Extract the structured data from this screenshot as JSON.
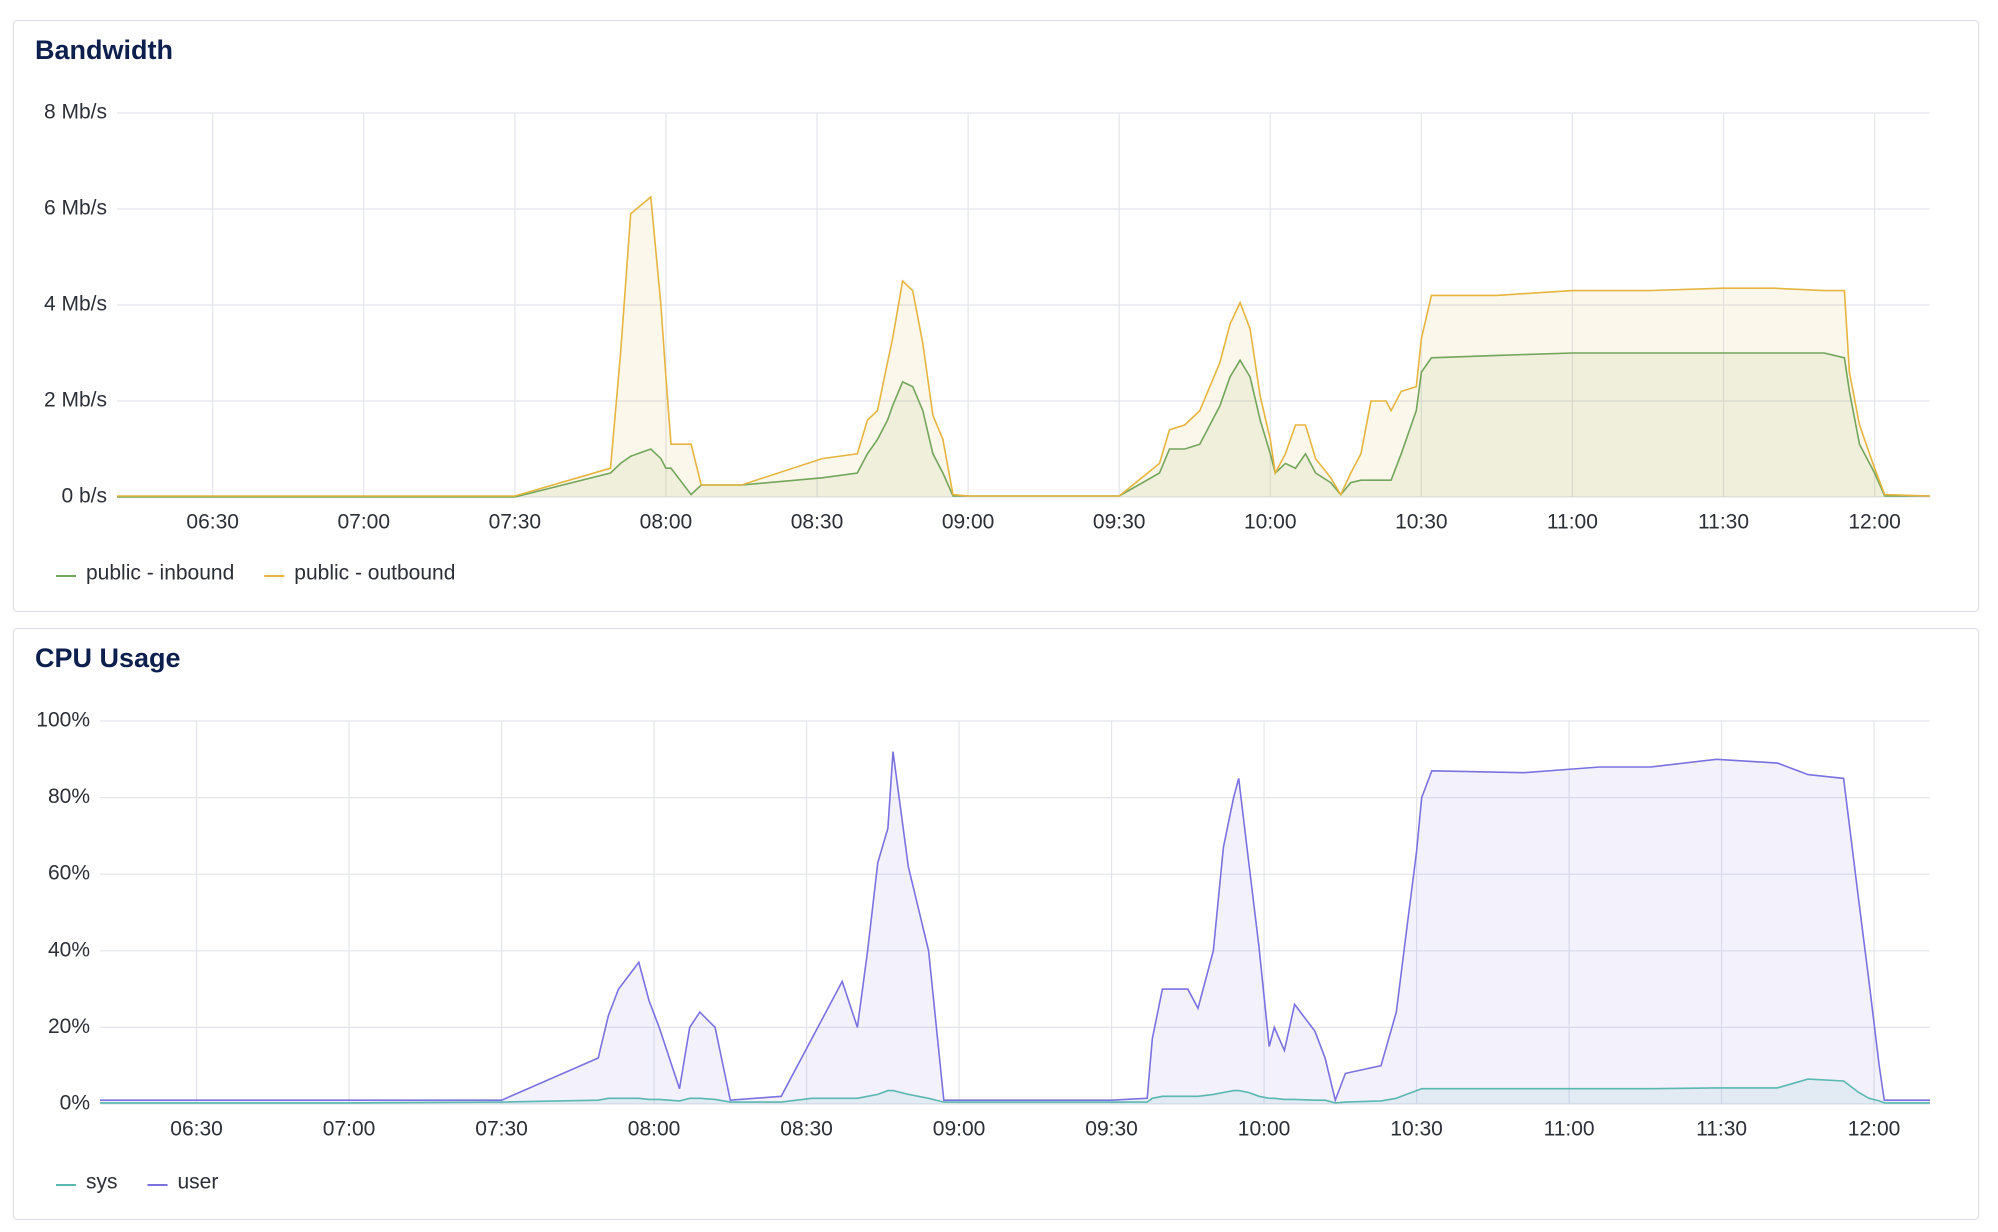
{
  "chart_data": [
    {
      "type": "line",
      "title": "Bandwidth",
      "fill": true,
      "grid": true,
      "legend": "bottom",
      "x": [
        "06:11",
        "06:30",
        "07:00",
        "07:30",
        "07:49",
        "07:51",
        "07:53",
        "07:57",
        "07:59",
        "08:00",
        "08:01",
        "08:05",
        "08:07",
        "08:15",
        "08:31",
        "08:38",
        "08:40",
        "08:42",
        "08:44",
        "08:45",
        "08:47",
        "08:49",
        "08:51",
        "08:53",
        "08:55",
        "08:57",
        "09:00",
        "09:30",
        "09:38",
        "09:40",
        "09:43",
        "09:46",
        "09:50",
        "09:52",
        "09:54",
        "09:56",
        "09:58",
        "10:00",
        "10:01",
        "10:03",
        "10:05",
        "10:07",
        "10:09",
        "10:12",
        "10:14",
        "10:16",
        "10:18",
        "10:20",
        "10:23",
        "10:24",
        "10:26",
        "10:29",
        "10:30",
        "10:32",
        "10:45",
        "11:00",
        "11:15",
        "11:30",
        "11:40",
        "11:50",
        "11:54",
        "11:55",
        "11:57",
        "12:00",
        "12:02",
        "12:11"
      ],
      "series": [
        {
          "name": "public - inbound",
          "color": "#73a55b",
          "values": [
            0,
            0,
            0,
            0,
            0.5,
            0.7,
            0.85,
            1.0,
            0.8,
            0.6,
            0.6,
            0.05,
            0.25,
            0.25,
            0.4,
            0.5,
            0.9,
            1.2,
            1.6,
            1.9,
            2.4,
            2.3,
            1.8,
            0.9,
            0.5,
            0.02,
            0.02,
            0.02,
            0.5,
            1.0,
            1.0,
            1.1,
            1.9,
            2.5,
            2.85,
            2.5,
            1.6,
            0.9,
            0.5,
            0.7,
            0.6,
            0.9,
            0.5,
            0.3,
            0.05,
            0.3,
            0.35,
            0.35,
            0.35,
            0.35,
            0.9,
            1.8,
            2.6,
            2.9,
            2.95,
            3.0,
            3.0,
            3.0,
            3.0,
            3.0,
            2.9,
            2.2,
            1.1,
            0.5,
            0.02,
            0.02
          ]
        },
        {
          "name": "public - outbound",
          "color": "#e5b53f",
          "values": [
            0.02,
            0.02,
            0.02,
            0.02,
            0.6,
            3.0,
            5.9,
            6.25,
            4.0,
            2.5,
            1.1,
            1.1,
            0.25,
            0.25,
            0.8,
            0.9,
            1.6,
            1.8,
            2.8,
            3.3,
            4.5,
            4.3,
            3.2,
            1.7,
            1.2,
            0.05,
            0.02,
            0.02,
            0.7,
            1.4,
            1.5,
            1.8,
            2.8,
            3.6,
            4.05,
            3.5,
            2.1,
            1.2,
            0.5,
            0.9,
            1.5,
            1.5,
            0.8,
            0.4,
            0.05,
            0.5,
            0.9,
            2.0,
            2.0,
            1.8,
            2.2,
            2.3,
            3.3,
            4.2,
            4.2,
            4.3,
            4.3,
            4.35,
            4.35,
            4.3,
            4.3,
            2.6,
            1.5,
            0.6,
            0.05,
            0.02
          ]
        }
      ],
      "xlim": [
        "06:11",
        "12:11"
      ],
      "xticks": [
        "06:30",
        "07:00",
        "07:30",
        "08:00",
        "08:30",
        "09:00",
        "09:30",
        "10:00",
        "10:30",
        "11:00",
        "11:30",
        "12:00"
      ],
      "ylim": [
        0,
        8
      ],
      "yticks": [
        {
          "value": 0,
          "label": "0 b/s"
        },
        {
          "value": 2,
          "label": "2 Mb/s"
        },
        {
          "value": 4,
          "label": "4 Mb/s"
        },
        {
          "value": 6,
          "label": "6 Mb/s"
        },
        {
          "value": 8,
          "label": "8 Mb/s"
        }
      ]
    },
    {
      "type": "line",
      "title": "CPU Usage",
      "fill": true,
      "grid": true,
      "legend": "bottom",
      "x": [
        "06:11",
        "06:30",
        "07:00",
        "07:30",
        "07:49",
        "07:51",
        "07:53",
        "07:57",
        "07:59",
        "08:01",
        "08:05",
        "08:07",
        "08:09",
        "08:12",
        "08:15",
        "08:25",
        "08:31",
        "08:37",
        "08:40",
        "08:42",
        "08:44",
        "08:46",
        "08:47",
        "08:50",
        "08:54",
        "08:57",
        "09:30",
        "09:37",
        "09:38",
        "09:40",
        "09:45",
        "09:47",
        "09:50",
        "09:52",
        "09:54",
        "09:55",
        "09:57",
        "09:59",
        "10:01",
        "10:02",
        "10:04",
        "10:06",
        "10:10",
        "10:12",
        "10:14",
        "10:16",
        "10:23",
        "10:26",
        "10:28",
        "10:30",
        "10:31",
        "10:33",
        "10:51",
        "11:06",
        "11:16",
        "11:29",
        "11:41",
        "11:47",
        "11:54",
        "11:57",
        "11:59",
        "12:01",
        "12:02",
        "12:11"
      ],
      "series": [
        {
          "name": "sys",
          "color": "#5ab8b0",
          "values": [
            0.3,
            0.3,
            0.3,
            0.5,
            1,
            1.5,
            1.5,
            1.5,
            1.2,
            1.2,
            0.8,
            1.5,
            1.5,
            1.2,
            0.5,
            0.5,
            1.5,
            1.5,
            1.5,
            2,
            2.5,
            3.5,
            3.5,
            2.5,
            1.5,
            0.5,
            0.5,
            0.5,
            1.5,
            2,
            2,
            2,
            2.5,
            3,
            3.5,
            3.5,
            3,
            2,
            1.5,
            1.5,
            1.2,
            1.2,
            1,
            1,
            0.3,
            0.5,
            0.8,
            1.5,
            2.5,
            3.5,
            4,
            4,
            4,
            4,
            4,
            4.2,
            4.2,
            6.5,
            6,
            3,
            1.5,
            0.8,
            0.3,
            0.3
          ]
        },
        {
          "name": "user",
          "color": "#7b72e0",
          "values": [
            1,
            1,
            1,
            1,
            12,
            23,
            30,
            37,
            27,
            20,
            4,
            20,
            24,
            20,
            1,
            2,
            17,
            32,
            20,
            40,
            63,
            72,
            92,
            62,
            40,
            1,
            1,
            1.5,
            17,
            30,
            30,
            25,
            40,
            67,
            80,
            85,
            63,
            41,
            15,
            20,
            14,
            26,
            19,
            12,
            1,
            8,
            10,
            24,
            45,
            66,
            80,
            87,
            86.5,
            88,
            88,
            90,
            89,
            86,
            85,
            53,
            32,
            10,
            1,
            1
          ]
        }
      ],
      "xlim": [
        "06:11",
        "12:11"
      ],
      "xticks": [
        "06:30",
        "07:00",
        "07:30",
        "08:00",
        "08:30",
        "09:00",
        "09:30",
        "10:00",
        "10:30",
        "11:00",
        "11:30",
        "12:00"
      ],
      "ylim": [
        0,
        100
      ],
      "yticks": [
        {
          "value": 0,
          "label": "0%"
        },
        {
          "value": 20,
          "label": "20%"
        },
        {
          "value": 40,
          "label": "40%"
        },
        {
          "value": 60,
          "label": "60%"
        },
        {
          "value": 80,
          "label": "80%"
        },
        {
          "value": 100,
          "label": "100%"
        }
      ]
    }
  ]
}
